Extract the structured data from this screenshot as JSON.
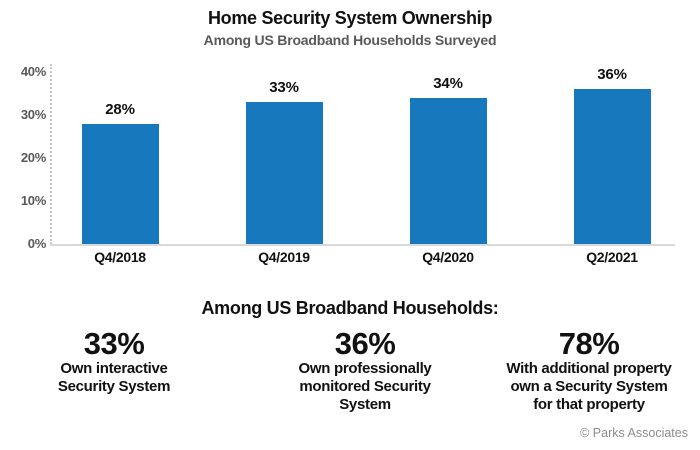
{
  "chart_data": {
    "type": "bar",
    "title": "Home Security System Ownership",
    "subtitle": "Among US Broadband Households Surveyed",
    "categories": [
      "Q4/2018",
      "Q4/2019",
      "Q4/2020",
      "Q2/2021"
    ],
    "values": [
      28,
      33,
      34,
      36
    ],
    "data_labels": [
      "28%",
      "33%",
      "34%",
      "36%"
    ],
    "xlabel": "",
    "ylabel": "",
    "ylim": [
      0,
      40
    ],
    "ytick_values": [
      0,
      10,
      20,
      30,
      40
    ],
    "ytick_labels": [
      "0%",
      "10%",
      "20%",
      "30%",
      "40%"
    ],
    "bar_color": "#1878BE",
    "grid": "none",
    "legend": "none"
  },
  "summary": {
    "heading": "Among US Broadband Households:",
    "stats": [
      {
        "value": "33%",
        "lines": [
          "Own interactive",
          "Security System"
        ]
      },
      {
        "value": "36%",
        "lines": [
          "Own professionally",
          "monitored Security",
          "System"
        ]
      },
      {
        "value": "78%",
        "lines": [
          "With additional property",
          "own a Security System",
          "for that property"
        ]
      }
    ]
  },
  "footer": {
    "copyright": "© Parks Associates"
  },
  "colors": {
    "bar": "#1878BE",
    "title_text": "#111111",
    "subtitle_text": "#595959",
    "axis_label": "#595959",
    "baseline": "#D9D9D9",
    "axis_dotted": "#C8C8C8",
    "copyright_text": "#8C8C8C"
  }
}
